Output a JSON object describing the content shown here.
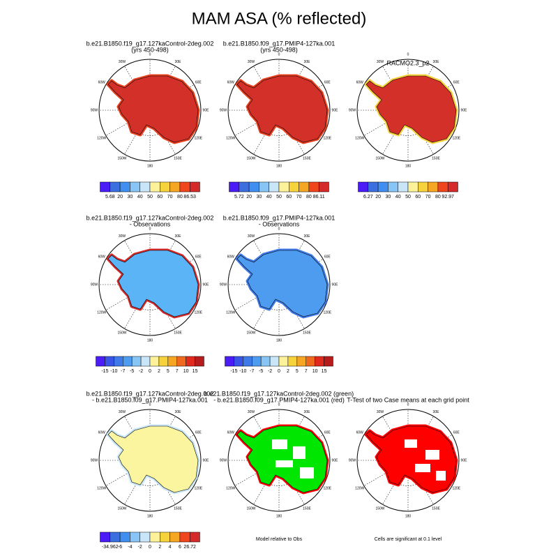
{
  "title": "MAM ASA (% reflected)",
  "lon_labels": [
    "0",
    "30E",
    "60E",
    "90E",
    "120E",
    "150E",
    "180",
    "150W",
    "120W",
    "90W",
    "60W",
    "30W"
  ],
  "panels": [
    {
      "title": [
        "b.e21.B1850.f19_g17.127kaControl-2deg.002",
        "(yrs 450-498)"
      ],
      "fill": "#d3302a",
      "edge": "#e8401e",
      "colorbar": {
        "colors": [
          "#4b1cf5",
          "#3b6fe0",
          "#3f8ef0",
          "#88c4f5",
          "#c8e6f8",
          "#fdf29a",
          "#f6d33c",
          "#f5a623",
          "#f0461e",
          "#d42a2a"
        ],
        "labels": [
          "5.68",
          "20",
          "30",
          "40",
          "50",
          "60",
          "70",
          "80",
          "86.53"
        ]
      }
    },
    {
      "title": [
        "b.e21.B1850.f09_g17.PMIP4-127ka.001",
        "(yrs 450-498)"
      ],
      "fill": "#d3302a",
      "edge": "#e8401e",
      "colorbar": {
        "colors": [
          "#4b1cf5",
          "#3b6fe0",
          "#3f8ef0",
          "#88c4f5",
          "#c8e6f8",
          "#fdf29a",
          "#f6d33c",
          "#f5a623",
          "#f0461e",
          "#d42a2a"
        ],
        "labels": [
          "5.72",
          "20",
          "30",
          "40",
          "50",
          "60",
          "70",
          "80",
          "86.11"
        ]
      }
    },
    {
      "title": [
        "RACMO2.3_p2"
      ],
      "fill": "#d3302a",
      "edge": "#f6d33c",
      "colorbar": {
        "colors": [
          "#4b1cf5",
          "#3b6fe0",
          "#3f8ef0",
          "#88c4f5",
          "#c8e6f8",
          "#fdf29a",
          "#f6d33c",
          "#f5a623",
          "#f0461e",
          "#d42a2a"
        ],
        "labels": [
          "6.27",
          "20",
          "30",
          "40",
          "50",
          "60",
          "70",
          "80",
          "92.97"
        ]
      }
    },
    {
      "title": [
        "b.e21.B1850.f19_g17.127kaControl-2deg.002",
        "- Observations"
      ],
      "fill": "#5ab4f5",
      "edge": "#d42a2a",
      "colorbar": {
        "colors": [
          "#4b1cf5",
          "#3a54e8",
          "#3f7ae8",
          "#4d9cf0",
          "#87c5f5",
          "#c8e6f8",
          "#fdf29a",
          "#f6d33c",
          "#f5a623",
          "#f06a1e",
          "#e02a1e",
          "#b71c1c"
        ],
        "labels": [
          "-15",
          "-10",
          "-7",
          "-5",
          "-2",
          "0",
          "2",
          "5",
          "7",
          "10",
          "15"
        ]
      }
    },
    {
      "title": [
        "b.e21.B1850.f09_g17.PMIP4-127ka.001",
        "- Observations"
      ],
      "fill": "#4d9cf0",
      "edge": "#3f7ae8",
      "colorbar": {
        "colors": [
          "#4b1cf5",
          "#3a54e8",
          "#3f7ae8",
          "#4d9cf0",
          "#87c5f5",
          "#c8e6f8",
          "#fdf29a",
          "#f6d33c",
          "#f5a623",
          "#f06a1e",
          "#e02a1e",
          "#b71c1c"
        ],
        "labels": [
          "-15",
          "-10",
          "-7",
          "-5",
          "-2",
          "0",
          "2",
          "5",
          "7",
          "10",
          "15"
        ]
      }
    },
    null,
    {
      "title": [
        "b.e21.B1850.f19_g17.127kaControl-2deg.002",
        "- b.e21.B1850.f09_g17.PMIP4-127ka.001"
      ],
      "fill": "#fbf5a0",
      "edge": "#c8e6f8",
      "colorbar": {
        "colors": [
          "#4b1cf5",
          "#3b6fe0",
          "#3f8ef0",
          "#88c4f5",
          "#c8e6f8",
          "#fdf29a",
          "#f6d33c",
          "#f5a623",
          "#f0461e",
          "#d42a2a"
        ],
        "labels": [
          "-34.962",
          "-6",
          "-4",
          "-2",
          "0",
          "2",
          "4",
          "6",
          "26.72"
        ]
      }
    },
    {
      "title": [
        "b.e21.B1850.f19_g17.127kaControl-2deg.002 (green)",
        "- b.e21.B1850.f09_g17.PMIP4-127ka.001 (red)"
      ],
      "fill": "#00e600",
      "edge": "#ff0000",
      "note": "Model relative to Obs"
    },
    {
      "title": [
        "T-Test of two Case means at each grid point"
      ],
      "fill": "#ff0000",
      "edge": "#ff0000",
      "note": "Cells are significant at 0.1 level"
    }
  ]
}
